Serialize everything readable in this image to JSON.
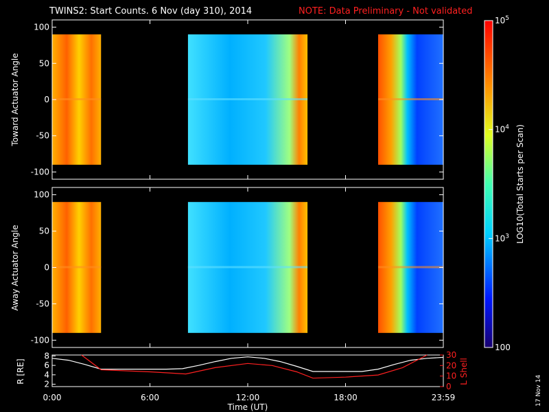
{
  "title": {
    "main": "TWINS2: Start Counts.  6 Nov (day 310), 2014",
    "note": "NOTE: Data Preliminary - Not validated"
  },
  "stamp": "17 Nov 14",
  "colors": {
    "background": "#000000",
    "axes": "#ffffff",
    "note": "#ff2020",
    "r_line": "#ffffff",
    "l_line": "#ff2020"
  },
  "colorbar": {
    "label": "LOG10(Total Starts per Scan)",
    "ticks": [
      {
        "label": "10^5",
        "value": 100000
      },
      {
        "label": "10^4",
        "value": 10000
      },
      {
        "label": "10^3",
        "value": 1000
      },
      {
        "label": "100",
        "value": 100
      }
    ],
    "range": [
      100,
      100000
    ],
    "scale": "log",
    "colormap": "rainbow"
  },
  "chart_data": [
    {
      "type": "heatmap",
      "ylabel": "Toward Actuator Angle",
      "ylim": [
        -110,
        110
      ],
      "yticks": [
        100,
        50,
        0,
        -50,
        -100
      ],
      "xlim_hours": [
        0,
        24
      ],
      "angle_range": [
        -90,
        90
      ],
      "data_blocks": [
        {
          "start": "00:00",
          "end": "03:00",
          "level": "high",
          "log_counts": 4.7
        },
        {
          "start": "08:20",
          "end": "15:40",
          "level": "mid",
          "log_counts": 3.5
        },
        {
          "start": "20:00",
          "end": "23:59",
          "level": "mixed",
          "log_counts": 3.3
        }
      ]
    },
    {
      "type": "heatmap",
      "ylabel": "Away Actuator Angle",
      "ylim": [
        -110,
        110
      ],
      "yticks": [
        100,
        50,
        0,
        -50,
        -100
      ],
      "xlim_hours": [
        0,
        24
      ],
      "angle_range": [
        -90,
        90
      ],
      "data_blocks": [
        {
          "start": "00:00",
          "end": "03:00",
          "level": "high",
          "log_counts": 4.7
        },
        {
          "start": "08:20",
          "end": "15:40",
          "level": "mid",
          "log_counts": 3.5
        },
        {
          "start": "20:00",
          "end": "23:59",
          "level": "mixed",
          "log_counts": 3.3
        }
      ]
    },
    {
      "type": "line",
      "xlabel": "Time (UT)",
      "xticks": [
        "0:00",
        "6:00",
        "12:00",
        "18:00",
        "23:59"
      ],
      "x_hours": [
        0,
        6,
        12,
        18,
        24
      ],
      "left_axis": {
        "label": "R [RE]",
        "ylim": [
          1.5,
          8.2
        ],
        "yticks": [
          2,
          4,
          6,
          8
        ]
      },
      "right_axis": {
        "label": "L Shell",
        "ylim": [
          0,
          30
        ],
        "yticks": [
          0,
          10,
          20,
          30
        ]
      },
      "series": [
        {
          "name": "R [RE]",
          "axis": "left",
          "x": [
            0,
            1,
            2,
            3,
            4,
            5,
            6,
            7,
            8,
            9,
            10,
            11,
            12,
            13,
            14,
            15,
            16,
            17,
            18,
            19,
            20,
            21,
            22,
            23,
            24
          ],
          "y": [
            7.5,
            7.1,
            6.2,
            5.2,
            5.2,
            5.2,
            5.2,
            5.2,
            5.3,
            6.0,
            6.8,
            7.5,
            7.8,
            7.5,
            6.8,
            5.8,
            4.7,
            4.7,
            4.7,
            4.7,
            5.2,
            6.2,
            7.1,
            7.5,
            7.7
          ]
        },
        {
          "name": "L Shell",
          "axis": "right",
          "x": [
            1.8,
            3,
            6,
            8.2,
            10,
            12,
            13.5,
            15,
            16,
            18,
            20,
            21.5,
            23
          ],
          "y": [
            30,
            16,
            14,
            12,
            18,
            22,
            20,
            14,
            8,
            9,
            11,
            18,
            30
          ]
        }
      ]
    }
  ]
}
